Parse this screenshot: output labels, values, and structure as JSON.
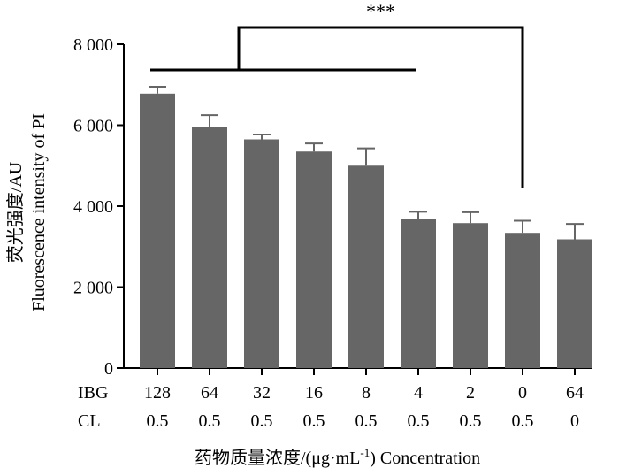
{
  "chart_data": {
    "type": "bar",
    "title": "",
    "ylabel_cn": "荧光强度/AU",
    "ylabel_en": "Fluorescence intensity of PI",
    "xlabel_cn": "药物质量浓度/(μg·mL",
    "xlabel_sup": "-1",
    "xlabel_en": ") Concentration",
    "ylim": [
      0,
      8000
    ],
    "yticks": [
      0,
      2000,
      4000,
      6000,
      8000
    ],
    "ytick_labels": [
      "0",
      "2 000",
      "4 000",
      "6 000",
      "8 000"
    ],
    "grid": false,
    "row_labels": [
      "IBG",
      "CL"
    ],
    "ibg": [
      "128",
      "64",
      "32",
      "16",
      "8",
      "4",
      "2",
      "0",
      "64"
    ],
    "cl": [
      "0.5",
      "0.5",
      "0.5",
      "0.5",
      "0.5",
      "0.5",
      "0.5",
      "0.5",
      "0"
    ],
    "values": [
      6780,
      5950,
      5650,
      5350,
      5000,
      3680,
      3580,
      3340,
      3180
    ],
    "errors": [
      170,
      300,
      120,
      200,
      430,
      180,
      270,
      300,
      380
    ],
    "bar_color": "#666666",
    "significance": {
      "label": "***",
      "group_start": 0,
      "group_end": 5,
      "target": 7
    }
  }
}
